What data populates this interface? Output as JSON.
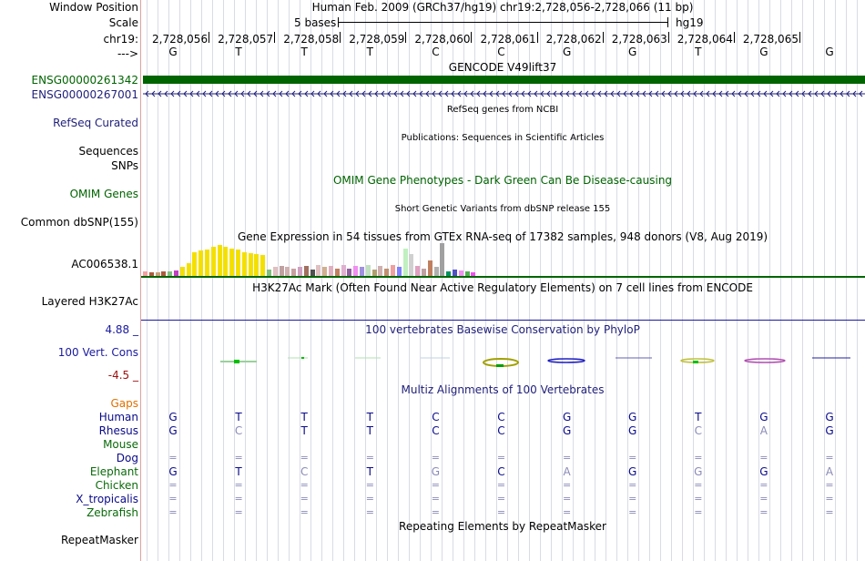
{
  "header": {
    "window_position_label": "Window Position",
    "window_position_text": "Human Feb. 2009 (GRCh37/hg19)   chr19:2,728,056-2,728,066 (11 bp)",
    "scale_label": "Scale",
    "scale_text": "5 bases",
    "scale_assembly": "hg19",
    "chrom_label": "chr19:",
    "arrow_label": "--->",
    "positions": [
      "2,728,056",
      "2,728,057",
      "2,728,058",
      "2,728,059",
      "2,728,060",
      "2,728,061",
      "2,728,062",
      "2,728,063",
      "2,728,064",
      "2,728,065"
    ]
  },
  "reference_bases": [
    "G",
    "T",
    "T",
    "T",
    "C",
    "C",
    "G",
    "G",
    "T",
    "G",
    "G"
  ],
  "tracks": {
    "gencode_title": "GENCODE V49lift37",
    "gene1_label": "ENSG00000261342",
    "gene2_label": "ENSG00000267001",
    "refseq_label": "RefSeq Curated",
    "refseq_title": "RefSeq genes from NCBI",
    "sequences_label": "Sequences",
    "publications_title": "Publications: Sequences in Scientific Articles",
    "snps_label": "SNPs",
    "omim_title": "OMIM Gene Phenotypes - Dark Green Can Be Disease-causing",
    "omim_label": "OMIM Genes",
    "dbsnp_title": "Short Genetic Variants from dbSNP release 155",
    "dbsnp_label": "Common dbSNP(155)",
    "gtex_title": "Gene Expression in 54 tissues from GTEx RNA-seq of 17382 samples, 948 donors (V8, Aug 2019)",
    "gtex_label": "AC006538.1",
    "h3k27_title": "H3K27Ac Mark (Often Found Near Active Regulatory Elements) on 7 cell lines from ENCODE",
    "h3k27_label": "Layered H3K27Ac",
    "cons_max": "4.88 _",
    "cons_label": "100 Vert. Cons",
    "cons_min": "-4.5 _",
    "cons_title": "100 vertebrates Basewise Conservation by PhyloP",
    "multiz_title": "Multiz Alignments of 100 Vertebrates",
    "gaps_label": "Gaps",
    "repeat_title": "Repeating Elements by RepeatMasker",
    "repeat_label": "RepeatMasker"
  },
  "gtex": {
    "values": [
      4,
      3,
      3,
      4,
      4,
      5,
      8,
      12,
      22,
      23,
      24,
      27,
      28,
      27,
      25,
      24,
      22,
      21,
      20,
      19,
      6,
      8,
      9,
      8,
      7,
      8,
      9,
      6,
      10,
      8,
      9,
      7,
      10,
      7,
      9,
      8,
      10,
      6,
      9,
      7,
      10,
      8,
      25,
      20,
      9,
      7,
      14,
      8,
      30,
      4,
      6,
      5,
      4,
      3
    ],
    "colors": [
      "#f4a0a0",
      "#aa5c3d",
      "#c8a07a",
      "#aa5c3d",
      "#7fbf7f",
      "#c040c0",
      "#f4e000",
      "#f4e000",
      "#f4e000",
      "#f4e000",
      "#f4e000",
      "#f4e000",
      "#f4e000",
      "#f4e000",
      "#f4e000",
      "#f4e000",
      "#f4e000",
      "#f4e000",
      "#f4e000",
      "#f4e000",
      "#7fbf7f",
      "#e0c0c0",
      "#c0a0a0",
      "#d0b0b0",
      "#c8a0a0",
      "#d0a0c0",
      "#a07060",
      "#505050",
      "#e0c0c0",
      "#d0b090",
      "#e0b0c0",
      "#c08060",
      "#e0b0d0",
      "#9060a0",
      "#f090f0",
      "#a090e0",
      "#c0e0c0",
      "#b0a070",
      "#d0b0b0",
      "#c09070",
      "#f0a0a0",
      "#7f7fff",
      "#c0f0c0",
      "#d0d0d0",
      "#e0a0c0",
      "#c0a0a0",
      "#c08060",
      "#b0b0b0",
      "#a0a0a0",
      "#009060",
      "#5050c0",
      "#f090f0",
      "#50b050",
      "#f050f0"
    ]
  },
  "alignment": {
    "species": [
      {
        "name": "Human",
        "color": "#0a0a8a",
        "bases": [
          "G",
          "T",
          "T",
          "T",
          "C",
          "C",
          "G",
          "G",
          "T",
          "G",
          "G"
        ],
        "faint": [
          0,
          0,
          0,
          0,
          0,
          0,
          0,
          0,
          0,
          0,
          0
        ]
      },
      {
        "name": "Rhesus",
        "color": "#0a0a8a",
        "bases": [
          "G",
          "C",
          "T",
          "T",
          "C",
          "C",
          "G",
          "G",
          "C",
          "A",
          "G"
        ],
        "faint": [
          0,
          1,
          0,
          0,
          0,
          0,
          0,
          0,
          1,
          1,
          0
        ]
      },
      {
        "name": "Mouse",
        "color": "#0a6a0a",
        "bases": [
          "",
          "",
          "",
          "",
          "",
          "",
          "",
          "",
          "",
          "",
          ""
        ],
        "faint": [
          0,
          0,
          0,
          0,
          0,
          0,
          0,
          0,
          0,
          0,
          0
        ]
      },
      {
        "name": "Dog",
        "color": "#0a0a8a",
        "bases": [
          "=",
          "=",
          "=",
          "=",
          "=",
          "=",
          "=",
          "=",
          "=",
          "=",
          "="
        ],
        "faint": [
          1,
          1,
          1,
          1,
          1,
          1,
          1,
          1,
          1,
          1,
          1
        ]
      },
      {
        "name": "Elephant",
        "color": "#0a6a0a",
        "bases": [
          "G",
          "T",
          "C",
          "T",
          "G",
          "C",
          "A",
          "G",
          "G",
          "G",
          "A"
        ],
        "faint": [
          0,
          0,
          1,
          0,
          1,
          0,
          1,
          0,
          1,
          0,
          1
        ]
      },
      {
        "name": "Chicken",
        "color": "#0a6a0a",
        "bases": [
          "=",
          "=",
          "=",
          "=",
          "=",
          "=",
          "=",
          "=",
          "=",
          "=",
          "="
        ],
        "faint": [
          1,
          1,
          1,
          1,
          1,
          1,
          1,
          1,
          1,
          1,
          1
        ]
      },
      {
        "name": "X_tropicalis",
        "color": "#0a0a8a",
        "bases": [
          "=",
          "=",
          "=",
          "=",
          "=",
          "=",
          "=",
          "=",
          "=",
          "=",
          "="
        ],
        "faint": [
          1,
          1,
          1,
          1,
          1,
          1,
          1,
          1,
          1,
          1,
          1
        ]
      },
      {
        "name": "Zebrafish",
        "color": "#0a6a0a",
        "bases": [
          "=",
          "=",
          "=",
          "=",
          "=",
          "=",
          "=",
          "=",
          "=",
          "=",
          "="
        ],
        "faint": [
          1,
          1,
          1,
          1,
          1,
          1,
          1,
          1,
          1,
          1,
          1
        ]
      }
    ]
  },
  "colors": {
    "gene_green": "#006400",
    "navy": "#1f1f7a",
    "gaps_orange": "#e07000",
    "cons_max": "#1a1aa0",
    "cons_min": "#a01010"
  }
}
